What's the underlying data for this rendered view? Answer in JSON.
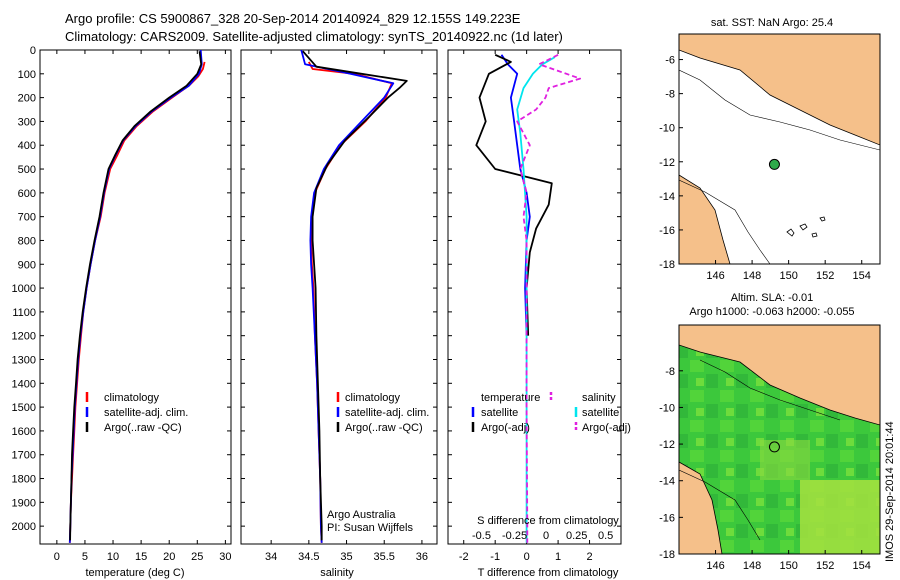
{
  "header": {
    "line1": "Argo profile: CS 5900867_328 20-Sep-2014 20140924_829 12.155S 149.223E",
    "line2": "Climatology: CARS2009. Satellite-adjusted climatology: synTS_20140922.nc (1d later)"
  },
  "side_label": "IMOS 29-Sep-2014 20:01:44",
  "colors": {
    "clim": "#ff0000",
    "sat": "#0000ff",
    "argo": "#000000",
    "sal_sat": "#00e5ee",
    "sal_argo": "#e020e0",
    "land": "#f5c08a",
    "sea": "#ffffff",
    "float_marker": "#2eaa4a",
    "sla_green": "#3cc83c"
  },
  "chart_data": [
    {
      "type": "line",
      "name": "temperature-profile",
      "xlabel": "temperature (deg C)",
      "xlim": [
        -3,
        31
      ],
      "xticks": [
        0,
        5,
        10,
        15,
        20,
        25,
        30
      ],
      "ylim": [
        0,
        2075
      ],
      "yticks": [
        0,
        100,
        200,
        300,
        400,
        500,
        600,
        700,
        800,
        900,
        1000,
        1100,
        1200,
        1300,
        1400,
        1500,
        1600,
        1700,
        1800,
        1900,
        2000
      ],
      "y_inverted": true,
      "legend": [
        "climatology",
        "satellite-adj. clim.",
        "Argo(..raw -QC)"
      ],
      "series": [
        {
          "name": "climatology",
          "color": "#ff0000",
          "points": [
            [
              26.3,
              50
            ],
            [
              26.0,
              80
            ],
            [
              25.2,
              110
            ],
            [
              23.5,
              150
            ],
            [
              20.5,
              200
            ],
            [
              17.0,
              260
            ],
            [
              14.2,
              320
            ],
            [
              12.0,
              380
            ],
            [
              10.8,
              440
            ],
            [
              9.5,
              500
            ],
            [
              8.5,
              600
            ],
            [
              7.8,
              700
            ],
            [
              6.8,
              800
            ],
            [
              6.0,
              900
            ],
            [
              5.3,
              1000
            ],
            [
              4.7,
              1100
            ],
            [
              4.3,
              1200
            ],
            [
              3.9,
              1300
            ],
            [
              3.6,
              1400
            ],
            [
              3.3,
              1500
            ],
            [
              3.1,
              1600
            ],
            [
              2.9,
              1700
            ],
            [
              2.7,
              1800
            ],
            [
              2.5,
              1900
            ],
            [
              2.4,
              2000
            ],
            [
              2.3,
              2070
            ]
          ]
        },
        {
          "name": "satellite-adj. clim.",
          "color": "#0000ff",
          "points": [
            [
              25.6,
              0
            ],
            [
              25.8,
              60
            ],
            [
              25.3,
              100
            ],
            [
              23.5,
              150
            ],
            [
              20.3,
              200
            ],
            [
              16.8,
              260
            ],
            [
              14.0,
              320
            ],
            [
              11.8,
              380
            ],
            [
              10.5,
              440
            ],
            [
              9.3,
              500
            ],
            [
              8.4,
              600
            ],
            [
              7.7,
              700
            ],
            [
              6.8,
              800
            ],
            [
              6.0,
              900
            ],
            [
              5.3,
              1000
            ],
            [
              4.7,
              1100
            ],
            [
              4.2,
              1200
            ],
            [
              3.8,
              1300
            ],
            [
              3.5,
              1400
            ],
            [
              3.2,
              1500
            ],
            [
              3.0,
              1600
            ],
            [
              2.8,
              1700
            ],
            [
              2.6,
              1800
            ],
            [
              2.5,
              1900
            ],
            [
              2.4,
              2000
            ],
            [
              2.3,
              2070
            ]
          ]
        },
        {
          "name": "Argo(..raw -QC)",
          "color": "#000000",
          "points": [
            [
              25.4,
              5
            ],
            [
              25.7,
              60
            ],
            [
              25.0,
              100
            ],
            [
              23.1,
              150
            ],
            [
              20.0,
              200
            ],
            [
              16.6,
              260
            ],
            [
              13.8,
              320
            ],
            [
              11.7,
              380
            ],
            [
              10.4,
              440
            ],
            [
              9.2,
              500
            ],
            [
              8.3,
              600
            ],
            [
              7.6,
              700
            ],
            [
              6.7,
              800
            ],
            [
              5.9,
              900
            ],
            [
              5.2,
              1000
            ],
            [
              4.6,
              1100
            ],
            [
              4.1,
              1200
            ],
            [
              3.7,
              1300
            ],
            [
              3.4,
              1400
            ],
            [
              3.1,
              1500
            ],
            [
              2.9,
              1600
            ],
            [
              2.7,
              1700
            ],
            [
              2.6,
              1800
            ],
            [
              2.5,
              1900
            ],
            [
              2.4,
              2000
            ],
            [
              2.35,
              2060
            ]
          ]
        }
      ]
    },
    {
      "type": "line",
      "name": "salinity-profile",
      "xlabel": "salinity",
      "xlim": [
        33.6,
        36.2
      ],
      "xticks": [
        34,
        34.5,
        35,
        35.5,
        36
      ],
      "ylim": [
        0,
        2075
      ],
      "y_inverted": true,
      "legend": [
        "climatology",
        "satellite-adj. clim.",
        "Argo(..raw -QC)"
      ],
      "annotation": [
        "Argo Australia",
        "PI: Susan Wijffels"
      ],
      "series": [
        {
          "name": "climatology",
          "color": "#ff0000",
          "points": [
            [
              34.5,
              50
            ],
            [
              34.55,
              80
            ],
            [
              35.1,
              100
            ],
            [
              35.6,
              140
            ],
            [
              35.52,
              200
            ],
            [
              35.25,
              300
            ],
            [
              34.92,
              400
            ],
            [
              34.72,
              500
            ],
            [
              34.58,
              600
            ],
            [
              34.54,
              700
            ],
            [
              34.53,
              800
            ],
            [
              34.54,
              900
            ],
            [
              34.56,
              1000
            ],
            [
              34.58,
              1200
            ],
            [
              34.61,
              1400
            ],
            [
              34.63,
              1600
            ],
            [
              34.65,
              1800
            ],
            [
              34.66,
              2000
            ],
            [
              34.67,
              2070
            ]
          ]
        },
        {
          "name": "satellite-adj. clim.",
          "color": "#0000ff",
          "points": [
            [
              34.4,
              0
            ],
            [
              34.45,
              60
            ],
            [
              35.05,
              100
            ],
            [
              35.62,
              140
            ],
            [
              35.5,
              200
            ],
            [
              35.2,
              300
            ],
            [
              34.9,
              400
            ],
            [
              34.7,
              500
            ],
            [
              34.57,
              600
            ],
            [
              34.53,
              700
            ],
            [
              34.52,
              800
            ],
            [
              34.53,
              900
            ],
            [
              34.55,
              1000
            ],
            [
              34.58,
              1200
            ],
            [
              34.61,
              1400
            ],
            [
              34.63,
              1600
            ],
            [
              34.65,
              1800
            ],
            [
              34.66,
              2000
            ],
            [
              34.67,
              2070
            ]
          ]
        },
        {
          "name": "Argo(..raw -QC)",
          "color": "#000000",
          "points": [
            [
              34.42,
              5
            ],
            [
              34.6,
              70
            ],
            [
              35.2,
              100
            ],
            [
              35.8,
              130
            ],
            [
              35.7,
              160
            ],
            [
              35.55,
              200
            ],
            [
              35.3,
              280
            ],
            [
              34.98,
              380
            ],
            [
              34.75,
              480
            ],
            [
              34.6,
              580
            ],
            [
              34.55,
              700
            ],
            [
              34.55,
              800
            ],
            [
              34.57,
              900
            ],
            [
              34.59,
              1000
            ],
            [
              34.6,
              1200
            ],
            [
              34.62,
              1400
            ],
            [
              34.64,
              1600
            ],
            [
              34.65,
              1800
            ],
            [
              34.67,
              2000
            ],
            [
              34.67,
              2060
            ]
          ]
        }
      ]
    },
    {
      "type": "line",
      "name": "difference-profile",
      "xlabel": "T difference from climatology",
      "xlabel_top": "S difference from climatology",
      "xlim": [
        -2.5,
        3
      ],
      "xticks": [
        -2,
        -1,
        0,
        1,
        2
      ],
      "top_ticks": [
        "-0.5",
        "-0.25",
        "0",
        "0.25",
        "0.5"
      ],
      "ylim": [
        0,
        2075
      ],
      "y_inverted": true,
      "legend_left_title": "temperature",
      "legend_right_title": "salinity",
      "legend_left": [
        "satellite",
        "Argo(-adj)"
      ],
      "legend_right": [
        "satellite",
        "Argo(-adj)"
      ],
      "series": [
        {
          "name": "temperature satellite",
          "color": "#0000ff",
          "dash": false,
          "points": [
            [
              -0.8,
              20
            ],
            [
              -0.6,
              60
            ],
            [
              -0.3,
              100
            ],
            [
              -0.5,
              200
            ],
            [
              -0.4,
              300
            ],
            [
              -0.3,
              400
            ],
            [
              -0.2,
              500
            ],
            [
              0.0,
              600
            ],
            [
              0.1,
              700
            ],
            [
              0.0,
              800
            ],
            [
              -0.05,
              1000
            ],
            [
              0.0,
              1200
            ]
          ]
        },
        {
          "name": "temperature Argo(-adj)",
          "color": "#000000",
          "dash": false,
          "points": [
            [
              -1.0,
              20
            ],
            [
              -0.5,
              50
            ],
            [
              -1.2,
              100
            ],
            [
              -1.5,
              200
            ],
            [
              -1.3,
              300
            ],
            [
              -1.6,
              400
            ],
            [
              -1.0,
              500
            ],
            [
              0.8,
              560
            ],
            [
              0.7,
              650
            ],
            [
              0.3,
              750
            ],
            [
              0.1,
              850
            ],
            [
              0.0,
              1000
            ],
            [
              0.05,
              1200
            ]
          ]
        },
        {
          "name": "salinity satellite",
          "color": "#00e5ee",
          "dash": false,
          "points": [
            [
              0.9,
              30
            ],
            [
              0.5,
              60
            ],
            [
              0.2,
              100
            ],
            [
              -0.1,
              160
            ],
            [
              -0.3,
              250
            ],
            [
              -0.2,
              350
            ],
            [
              -0.1,
              500
            ],
            [
              0.0,
              700
            ],
            [
              0.0,
              1000
            ],
            [
              0.0,
              1500
            ],
            [
              0.0,
              2000
            ],
            [
              0.0,
              2070
            ]
          ]
        },
        {
          "name": "salinity Argo(-adj)",
          "color": "#e020e0",
          "dash": true,
          "points": [
            [
              1.0,
              20
            ],
            [
              0.4,
              60
            ],
            [
              1.7,
              120
            ],
            [
              0.7,
              160
            ],
            [
              0.6,
              200
            ],
            [
              0.3,
              250
            ],
            [
              -0.3,
              300
            ],
            [
              0.1,
              400
            ],
            [
              -0.2,
              500
            ],
            [
              0.0,
              600
            ],
            [
              -0.1,
              700
            ],
            [
              0.0,
              800
            ],
            [
              0.0,
              1000
            ],
            [
              0.0,
              1500
            ],
            [
              0.02,
              2000
            ],
            [
              0.02,
              2070
            ]
          ]
        }
      ]
    },
    {
      "type": "map",
      "name": "sst-map",
      "title": "sat. SST: NaN Argo: 25.4",
      "xlim": [
        144,
        155
      ],
      "ylim": [
        -18,
        -4.5
      ],
      "xticks": [
        146,
        148,
        150,
        152,
        154
      ],
      "yticks": [
        -6,
        -8,
        -10,
        -12,
        -14,
        -16,
        -18
      ],
      "float": {
        "lon": 149.223,
        "lat": -12.155
      }
    },
    {
      "type": "map",
      "name": "sla-map",
      "title_line1": "Altim. SLA: -0.01",
      "title_line2": "Argo h1000: -0.063 h2000: -0.055",
      "xlim": [
        144,
        155
      ],
      "ylim": [
        -18,
        -5.5
      ],
      "xticks": [
        146,
        148,
        150,
        152,
        154
      ],
      "yticks": [
        -8,
        -10,
        -12,
        -14,
        -16,
        -18
      ],
      "float": {
        "lon": 149.223,
        "lat": -12.155
      }
    }
  ]
}
